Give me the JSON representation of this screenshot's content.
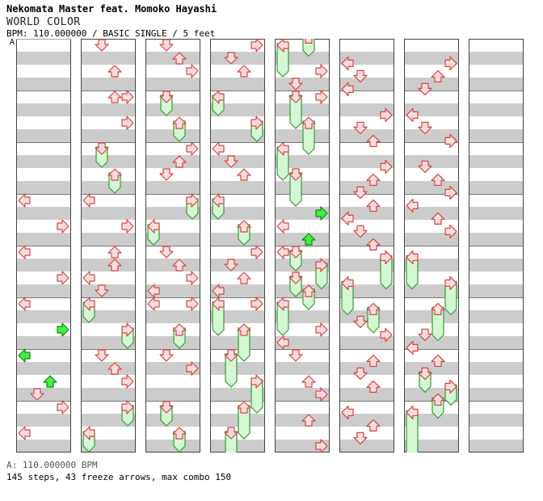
{
  "header": {
    "artist": "Nekomata Master feat. Momoko Hayashi",
    "title": "WORLD COLOR",
    "meta": "BPM: 110.000000 / BASIC SINGLE / 5 feet"
  },
  "bpm_marker": "A",
  "footer": {
    "bpm_line": "A: 110.000000 BPM",
    "stats": "145 steps, 43 freeze arrows, max combo 150"
  },
  "colors": {
    "stripe": "#cccccc",
    "border": "#444444",
    "arrow_fill": "#ffdede",
    "arrow_stroke": "#d44444",
    "freeze_fill": "#d4f7d4",
    "freeze_stroke": "#3a9a3a",
    "green_fill": "#44ee44",
    "green_stroke": "#118811"
  },
  "chart": {
    "columns": 8,
    "measures_per_column": 8,
    "lanes": [
      "left",
      "down",
      "up",
      "right"
    ],
    "notes": [
      {
        "c": 0,
        "lane": "left",
        "beat": 6,
        "type": "arrow"
      },
      {
        "c": 0,
        "lane": "right",
        "beat": 7,
        "type": "arrow"
      },
      {
        "c": 0,
        "lane": "left",
        "beat": 8,
        "type": "arrow"
      },
      {
        "c": 0,
        "lane": "right",
        "beat": 9,
        "type": "arrow"
      },
      {
        "c": 0,
        "lane": "left",
        "beat": 10,
        "type": "arrow"
      },
      {
        "c": 0,
        "lane": "right",
        "beat": 11,
        "type": "green"
      },
      {
        "c": 0,
        "lane": "left",
        "beat": 12,
        "type": "green"
      },
      {
        "c": 0,
        "lane": "up",
        "beat": 13,
        "type": "green"
      },
      {
        "c": 0,
        "lane": "down",
        "beat": 13.5,
        "type": "arrow"
      },
      {
        "c": 0,
        "lane": "right",
        "beat": 14,
        "type": "arrow"
      },
      {
        "c": 0,
        "lane": "left",
        "beat": 15,
        "type": "arrow"
      },
      {
        "c": 1,
        "lane": "down",
        "beat": 0,
        "type": "arrow"
      },
      {
        "c": 1,
        "lane": "up",
        "beat": 1,
        "type": "arrow"
      },
      {
        "c": 1,
        "lane": "up",
        "beat": 2,
        "type": "arrow"
      },
      {
        "c": 1,
        "lane": "right",
        "beat": 2,
        "type": "arrow"
      },
      {
        "c": 1,
        "lane": "right",
        "beat": 3,
        "type": "arrow"
      },
      {
        "c": 1,
        "lane": "down",
        "beat": 4,
        "type": "freeze",
        "end": 4.5
      },
      {
        "c": 1,
        "lane": "up",
        "beat": 5,
        "type": "freeze",
        "end": 5.5
      },
      {
        "c": 1,
        "lane": "left",
        "beat": 6,
        "type": "arrow"
      },
      {
        "c": 1,
        "lane": "right",
        "beat": 7,
        "type": "arrow"
      },
      {
        "c": 1,
        "lane": "up",
        "beat": 8,
        "type": "arrow"
      },
      {
        "c": 1,
        "lane": "up",
        "beat": 8.5,
        "type": "arrow"
      },
      {
        "c": 1,
        "lane": "left",
        "beat": 9,
        "type": "arrow"
      },
      {
        "c": 1,
        "lane": "down",
        "beat": 9.5,
        "type": "arrow"
      },
      {
        "c": 1,
        "lane": "left",
        "beat": 10,
        "type": "freeze",
        "end": 10.5
      },
      {
        "c": 1,
        "lane": "right",
        "beat": 11,
        "type": "freeze",
        "end": 11.5
      },
      {
        "c": 1,
        "lane": "down",
        "beat": 12,
        "type": "arrow"
      },
      {
        "c": 1,
        "lane": "up",
        "beat": 12.5,
        "type": "arrow"
      },
      {
        "c": 1,
        "lane": "right",
        "beat": 13,
        "type": "arrow"
      },
      {
        "c": 1,
        "lane": "right",
        "beat": 14,
        "type": "freeze",
        "end": 14.5
      },
      {
        "c": 1,
        "lane": "left",
        "beat": 15,
        "type": "freeze",
        "end": 15.5
      },
      {
        "c": 2,
        "lane": "down",
        "beat": 0,
        "type": "arrow"
      },
      {
        "c": 2,
        "lane": "up",
        "beat": 0.5,
        "type": "arrow"
      },
      {
        "c": 2,
        "lane": "right",
        "beat": 1,
        "type": "arrow"
      },
      {
        "c": 2,
        "lane": "down",
        "beat": 2,
        "type": "freeze",
        "end": 2.5
      },
      {
        "c": 2,
        "lane": "up",
        "beat": 3,
        "type": "freeze",
        "end": 3.5
      },
      {
        "c": 2,
        "lane": "right",
        "beat": 4,
        "type": "arrow"
      },
      {
        "c": 2,
        "lane": "up",
        "beat": 4.5,
        "type": "arrow"
      },
      {
        "c": 2,
        "lane": "down",
        "beat": 5,
        "type": "arrow"
      },
      {
        "c": 2,
        "lane": "right",
        "beat": 6,
        "type": "freeze",
        "end": 6.5
      },
      {
        "c": 2,
        "lane": "left",
        "beat": 7,
        "type": "freeze",
        "end": 7.5
      },
      {
        "c": 2,
        "lane": "down",
        "beat": 8,
        "type": "arrow"
      },
      {
        "c": 2,
        "lane": "up",
        "beat": 8.5,
        "type": "arrow"
      },
      {
        "c": 2,
        "lane": "right",
        "beat": 9,
        "type": "arrow"
      },
      {
        "c": 2,
        "lane": "left",
        "beat": 9.5,
        "type": "arrow"
      },
      {
        "c": 2,
        "lane": "left",
        "beat": 10,
        "type": "arrow"
      },
      {
        "c": 2,
        "lane": "right",
        "beat": 10,
        "type": "arrow"
      },
      {
        "c": 2,
        "lane": "up",
        "beat": 11,
        "type": "freeze",
        "end": 11.5
      },
      {
        "c": 2,
        "lane": "down",
        "beat": 12,
        "type": "arrow"
      },
      {
        "c": 2,
        "lane": "right",
        "beat": 12.5,
        "type": "arrow"
      },
      {
        "c": 2,
        "lane": "down",
        "beat": 14,
        "type": "freeze",
        "end": 14.5
      },
      {
        "c": 2,
        "lane": "up",
        "beat": 15,
        "type": "freeze",
        "end": 15.5
      },
      {
        "c": 3,
        "lane": "right",
        "beat": 0,
        "type": "arrow"
      },
      {
        "c": 3,
        "lane": "down",
        "beat": 0.5,
        "type": "arrow"
      },
      {
        "c": 3,
        "lane": "up",
        "beat": 1,
        "type": "arrow"
      },
      {
        "c": 3,
        "lane": "left",
        "beat": 2,
        "type": "freeze",
        "end": 2.5
      },
      {
        "c": 3,
        "lane": "right",
        "beat": 3,
        "type": "freeze",
        "end": 3.5
      },
      {
        "c": 3,
        "lane": "left",
        "beat": 4,
        "type": "arrow"
      },
      {
        "c": 3,
        "lane": "down",
        "beat": 4.5,
        "type": "arrow"
      },
      {
        "c": 3,
        "lane": "up",
        "beat": 5,
        "type": "arrow"
      },
      {
        "c": 3,
        "lane": "left",
        "beat": 6,
        "type": "freeze",
        "end": 6.5
      },
      {
        "c": 3,
        "lane": "up",
        "beat": 7,
        "type": "freeze",
        "end": 7.5
      },
      {
        "c": 3,
        "lane": "right",
        "beat": 8,
        "type": "arrow"
      },
      {
        "c": 3,
        "lane": "down",
        "beat": 8.5,
        "type": "arrow"
      },
      {
        "c": 3,
        "lane": "up",
        "beat": 9,
        "type": "arrow"
      },
      {
        "c": 3,
        "lane": "left",
        "beat": 9.5,
        "type": "arrow"
      },
      {
        "c": 3,
        "lane": "left",
        "beat": 10,
        "type": "freeze",
        "end": 11
      },
      {
        "c": 3,
        "lane": "right",
        "beat": 10,
        "type": "arrow"
      },
      {
        "c": 3,
        "lane": "up",
        "beat": 11,
        "type": "freeze",
        "end": 12
      },
      {
        "c": 3,
        "lane": "down",
        "beat": 12,
        "type": "freeze",
        "end": 13
      },
      {
        "c": 3,
        "lane": "right",
        "beat": 13,
        "type": "freeze",
        "end": 14
      },
      {
        "c": 3,
        "lane": "up",
        "beat": 14,
        "type": "freeze",
        "end": 15
      },
      {
        "c": 3,
        "lane": "down",
        "beat": 15,
        "type": "freeze",
        "end": 16
      },
      {
        "c": 4,
        "lane": "up",
        "beat": -0.3,
        "type": "freeze",
        "end": 0.2
      },
      {
        "c": 4,
        "lane": "left",
        "beat": 0,
        "type": "freeze",
        "end": 1
      },
      {
        "c": 4,
        "lane": "right",
        "beat": 1,
        "type": "arrow"
      },
      {
        "c": 4,
        "lane": "down",
        "beat": 1.5,
        "type": "arrow"
      },
      {
        "c": 4,
        "lane": "right",
        "beat": 2,
        "type": "arrow"
      },
      {
        "c": 4,
        "lane": "down",
        "beat": 2,
        "type": "freeze",
        "end": 3
      },
      {
        "c": 4,
        "lane": "up",
        "beat": 3,
        "type": "freeze",
        "end": 4
      },
      {
        "c": 4,
        "lane": "left",
        "beat": 4,
        "type": "freeze",
        "end": 5
      },
      {
        "c": 4,
        "lane": "down",
        "beat": 5,
        "type": "freeze",
        "end": 6
      },
      {
        "c": 4,
        "lane": "right",
        "beat": 6.5,
        "type": "green"
      },
      {
        "c": 4,
        "lane": "left",
        "beat": 7,
        "type": "arrow"
      },
      {
        "c": 4,
        "lane": "up",
        "beat": 7.5,
        "type": "green"
      },
      {
        "c": 4,
        "lane": "left",
        "beat": 8,
        "type": "arrow"
      },
      {
        "c": 4,
        "lane": "down",
        "beat": 8,
        "type": "freeze",
        "end": 8.5
      },
      {
        "c": 4,
        "lane": "right",
        "beat": 8.5,
        "type": "freeze",
        "end": 9.2
      },
      {
        "c": 4,
        "lane": "down",
        "beat": 9,
        "type": "freeze",
        "end": 9.5
      },
      {
        "c": 4,
        "lane": "up",
        "beat": 9.5,
        "type": "freeze",
        "end": 10
      },
      {
        "c": 4,
        "lane": "left",
        "beat": 10,
        "type": "freeze",
        "end": 11
      },
      {
        "c": 4,
        "lane": "right",
        "beat": 11,
        "type": "arrow"
      },
      {
        "c": 4,
        "lane": "left",
        "beat": 11.5,
        "type": "arrow"
      },
      {
        "c": 4,
        "lane": "down",
        "beat": 12,
        "type": "arrow"
      },
      {
        "c": 4,
        "lane": "up",
        "beat": 13,
        "type": "arrow"
      },
      {
        "c": 4,
        "lane": "right",
        "beat": 13.5,
        "type": "arrow"
      },
      {
        "c": 4,
        "lane": "up",
        "beat": 14.5,
        "type": "arrow"
      },
      {
        "c": 4,
        "lane": "right",
        "beat": 15.5,
        "type": "arrow"
      },
      {
        "c": 5,
        "lane": "left",
        "beat": 0.7,
        "type": "arrow"
      },
      {
        "c": 5,
        "lane": "down",
        "beat": 1.2,
        "type": "arrow"
      },
      {
        "c": 5,
        "lane": "left",
        "beat": 1.7,
        "type": "arrow"
      },
      {
        "c": 5,
        "lane": "right",
        "beat": 2.7,
        "type": "arrow"
      },
      {
        "c": 5,
        "lane": "down",
        "beat": 3.2,
        "type": "arrow"
      },
      {
        "c": 5,
        "lane": "up",
        "beat": 3.7,
        "type": "arrow"
      },
      {
        "c": 5,
        "lane": "right",
        "beat": 4.7,
        "type": "arrow"
      },
      {
        "c": 5,
        "lane": "up",
        "beat": 5.2,
        "type": "arrow"
      },
      {
        "c": 5,
        "lane": "down",
        "beat": 5.7,
        "type": "arrow"
      },
      {
        "c": 5,
        "lane": "up",
        "beat": 6.2,
        "type": "arrow"
      },
      {
        "c": 5,
        "lane": "left",
        "beat": 6.7,
        "type": "arrow"
      },
      {
        "c": 5,
        "lane": "down",
        "beat": 7.2,
        "type": "arrow"
      },
      {
        "c": 5,
        "lane": "up",
        "beat": 7.7,
        "type": "arrow"
      },
      {
        "c": 5,
        "lane": "right",
        "beat": 8.2,
        "type": "freeze",
        "end": 9.2
      },
      {
        "c": 5,
        "lane": "left",
        "beat": 9.2,
        "type": "freeze",
        "end": 10.2
      },
      {
        "c": 5,
        "lane": "up",
        "beat": 10.2,
        "type": "freeze",
        "end": 10.9
      },
      {
        "c": 5,
        "lane": "down",
        "beat": 10.7,
        "type": "arrow"
      },
      {
        "c": 5,
        "lane": "right",
        "beat": 11.2,
        "type": "arrow"
      },
      {
        "c": 5,
        "lane": "up",
        "beat": 12.2,
        "type": "arrow"
      },
      {
        "c": 5,
        "lane": "down",
        "beat": 12.7,
        "type": "arrow"
      },
      {
        "c": 5,
        "lane": "up",
        "beat": 13.2,
        "type": "arrow"
      },
      {
        "c": 5,
        "lane": "left",
        "beat": 14.2,
        "type": "arrow"
      },
      {
        "c": 5,
        "lane": "up",
        "beat": 14.7,
        "type": "arrow"
      },
      {
        "c": 5,
        "lane": "down",
        "beat": 15.2,
        "type": "arrow"
      },
      {
        "c": 6,
        "lane": "right",
        "beat": 0.7,
        "type": "arrow"
      },
      {
        "c": 6,
        "lane": "up",
        "beat": 1.2,
        "type": "arrow"
      },
      {
        "c": 6,
        "lane": "down",
        "beat": 1.7,
        "type": "arrow"
      },
      {
        "c": 6,
        "lane": "left",
        "beat": 2.7,
        "type": "arrow"
      },
      {
        "c": 6,
        "lane": "down",
        "beat": 3.2,
        "type": "arrow"
      },
      {
        "c": 6,
        "lane": "right",
        "beat": 3.7,
        "type": "arrow"
      },
      {
        "c": 6,
        "lane": "down",
        "beat": 4.7,
        "type": "arrow"
      },
      {
        "c": 6,
        "lane": "up",
        "beat": 5.2,
        "type": "arrow"
      },
      {
        "c": 6,
        "lane": "right",
        "beat": 5.7,
        "type": "arrow"
      },
      {
        "c": 6,
        "lane": "left",
        "beat": 6.2,
        "type": "arrow"
      },
      {
        "c": 6,
        "lane": "up",
        "beat": 6.7,
        "type": "arrow"
      },
      {
        "c": 6,
        "lane": "right",
        "beat": 7.2,
        "type": "arrow"
      },
      {
        "c": 6,
        "lane": "left",
        "beat": 8.2,
        "type": "freeze",
        "end": 9.2
      },
      {
        "c": 6,
        "lane": "right",
        "beat": 9.2,
        "type": "freeze",
        "end": 10.2
      },
      {
        "c": 6,
        "lane": "up",
        "beat": 10.2,
        "type": "freeze",
        "end": 11.2
      },
      {
        "c": 6,
        "lane": "down",
        "beat": 11.2,
        "type": "arrow"
      },
      {
        "c": 6,
        "lane": "left",
        "beat": 11.7,
        "type": "arrow"
      },
      {
        "c": 6,
        "lane": "up",
        "beat": 12.2,
        "type": "arrow"
      },
      {
        "c": 6,
        "lane": "down",
        "beat": 12.7,
        "type": "freeze",
        "end": 13.2
      },
      {
        "c": 6,
        "lane": "right",
        "beat": 13.2,
        "type": "freeze",
        "end": 13.7
      },
      {
        "c": 6,
        "lane": "up",
        "beat": 13.7,
        "type": "freeze",
        "end": 14.2
      },
      {
        "c": 6,
        "lane": "left",
        "beat": 14.2,
        "type": "freeze",
        "end": 16
      }
    ]
  }
}
